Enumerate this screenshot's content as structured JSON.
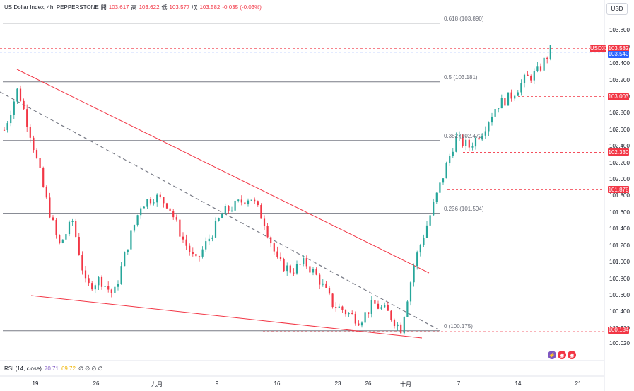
{
  "legend": {
    "title": "US Dollar Index, 4h, PEPPERSTONE",
    "open_label": "開",
    "open": "103.617",
    "high_label": "高",
    "high": "103.622",
    "low_label": "低",
    "low": "103.577",
    "close_label": "収",
    "close": "103.582",
    "change": "-0.035 (-0.03%)"
  },
  "currency_button": "USD",
  "chart_data": {
    "type": "candlestick",
    "title": "US Dollar Index, 4h, PEPPERSTONE",
    "y_ticks": [
      "103.800",
      "103.600",
      "103.400",
      "103.200",
      "103.000",
      "102.800",
      "102.600",
      "102.400",
      "102.200",
      "102.000",
      "101.800",
      "101.600",
      "101.400",
      "101.200",
      "101.000",
      "100.800",
      "100.600",
      "100.400",
      "100.200",
      "100.020"
    ],
    "y_tick_values": [
      103.8,
      103.6,
      103.4,
      103.2,
      103.0,
      102.8,
      102.6,
      102.4,
      102.2,
      102.0,
      101.8,
      101.6,
      101.4,
      101.2,
      101.0,
      100.8,
      100.6,
      100.4,
      100.2,
      100.02
    ],
    "ylim": [
      99.9,
      104.05
    ],
    "x_ticks": [
      "19",
      "26",
      "九月",
      "9",
      "16",
      "23",
      "26",
      "十月",
      "7",
      "14",
      "21"
    ],
    "fib_levels": [
      {
        "label": "0.618 (103.890)",
        "value": 103.89
      },
      {
        "label": "0.5 (103.181)",
        "value": 103.181
      },
      {
        "label": "0.382 (102.472)",
        "value": 102.472
      },
      {
        "label": "0.236 (101.594)",
        "value": 101.594
      },
      {
        "label": "0 (100.175)",
        "value": 100.175
      }
    ],
    "price_badges": [
      {
        "label": "USDX",
        "value": "103.582",
        "color": "#f23645"
      },
      {
        "label": "",
        "value": "103.540",
        "color": "#2962ff"
      },
      {
        "label": "",
        "value": "103.003",
        "color": "#f23645"
      },
      {
        "label": "",
        "value": "102.330",
        "color": "#f23645"
      },
      {
        "label": "",
        "value": "101.878",
        "color": "#f23645"
      },
      {
        "label": "",
        "value": "100.184",
        "color": "#f23645"
      }
    ],
    "close_path": [
      102.6,
      103.1,
      102.5,
      101.8,
      101.2,
      101.5,
      100.7,
      100.8,
      100.6,
      101.2,
      101.7,
      101.8,
      101.7,
      101.3,
      101.0,
      101.3,
      101.6,
      101.7,
      101.8,
      101.5,
      101.0,
      100.9,
      101.0,
      100.8,
      100.5,
      100.4,
      100.3,
      100.5,
      100.4,
      100.2,
      101.0,
      101.5,
      102.0,
      102.5,
      102.4,
      102.6,
      102.9,
      103.0,
      103.2,
      103.3,
      103.58
    ],
    "colors": {
      "up": "#26a69a",
      "down": "#f23645",
      "trend": "#f23645",
      "fib": "#787b86"
    }
  },
  "rsi": {
    "label": "RSI (14, close)",
    "value1": "70.71",
    "value2": "69.72",
    "dots": "∅ ∅ ∅ ∅"
  }
}
